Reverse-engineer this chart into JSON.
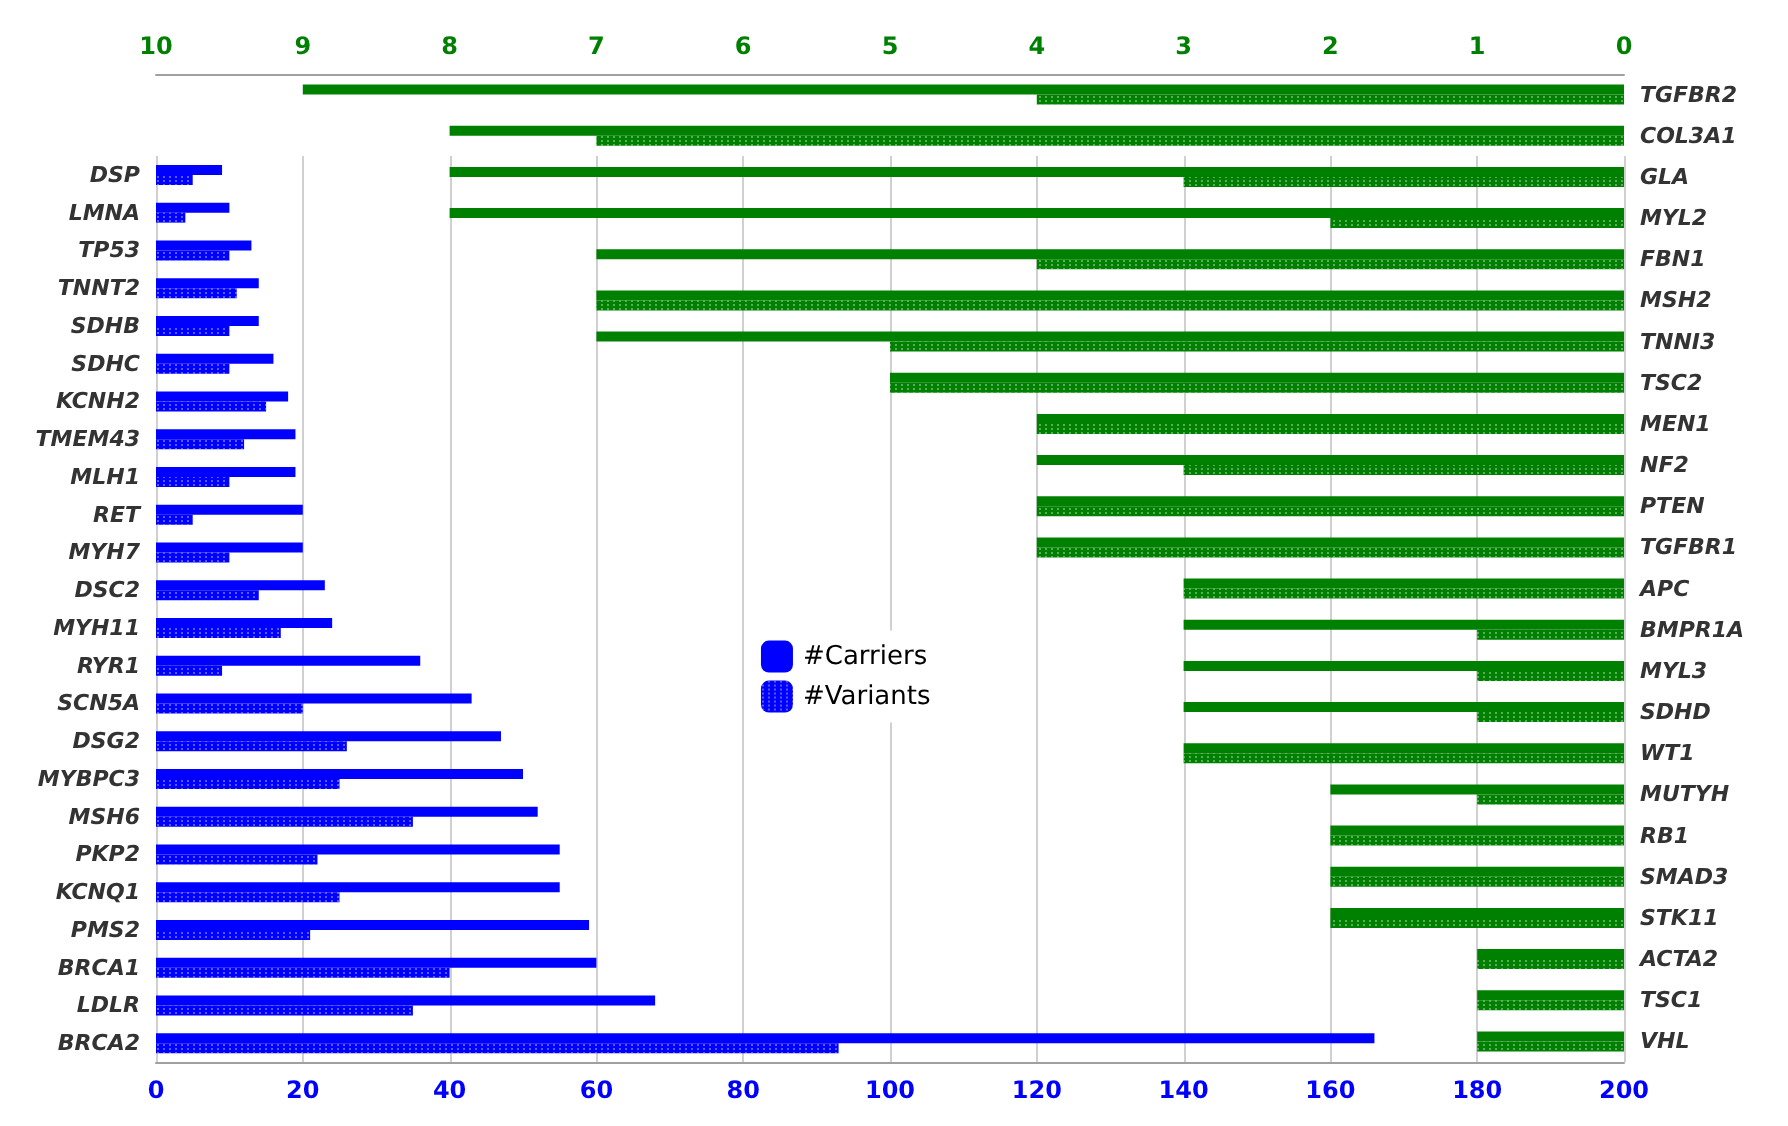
{
  "chart_data": [
    {
      "type": "bar",
      "orientation": "horizontal",
      "categories": [
        "DSP",
        "LMNA",
        "TP53",
        "TNNT2",
        "SDHB",
        "SDHC",
        "KCNH2",
        "TMEM43",
        "MLH1",
        "RET",
        "MYH7",
        "DSC2",
        "MYH11",
        "RYR1",
        "SCN5A",
        "DSG2",
        "MYBPC3",
        "MSH6",
        "PKP2",
        "KCNQ1",
        "PMS2",
        "BRCA1",
        "LDLR",
        "BRCA2"
      ],
      "series": [
        {
          "name": "#Carriers",
          "color": "#0000ff",
          "values": [
            9,
            10,
            13,
            14,
            14,
            16,
            18,
            19,
            19,
            20,
            20,
            23,
            24,
            36,
            43,
            47,
            50,
            52,
            55,
            55,
            59,
            60,
            68,
            166
          ]
        },
        {
          "name": "#Variants",
          "color": "#0000ff",
          "values": [
            5,
            4,
            10,
            11,
            10,
            10,
            15,
            12,
            10,
            5,
            10,
            14,
            17,
            9,
            20,
            26,
            25,
            35,
            22,
            25,
            21,
            40,
            35,
            93
          ]
        }
      ],
      "xlim": [
        0,
        200
      ],
      "xticks": [
        0,
        20,
        40,
        60,
        80,
        100,
        120,
        140,
        160,
        180,
        200
      ],
      "grid": "x",
      "legend": "center"
    },
    {
      "type": "bar",
      "orientation": "horizontal",
      "categories": [
        "TGFBR2",
        "COL3A1",
        "GLA",
        "MYL2",
        "FBN1",
        "MSH2",
        "TNNI3",
        "TSC2",
        "MEN1",
        "NF2",
        "PTEN",
        "TGFBR1",
        "APC",
        "BMPR1A",
        "MYL3",
        "SDHD",
        "WT1",
        "MUTYH",
        "RB1",
        "SMAD3",
        "STK11",
        "ACTA2",
        "TSC1",
        "VHL"
      ],
      "series": [
        {
          "color": "#008000",
          "axis": "x2",
          "values": [
            9,
            8,
            8,
            8,
            7,
            7,
            7,
            5,
            4,
            4,
            4,
            4,
            3,
            3,
            3,
            3,
            3,
            2,
            2,
            2,
            2,
            1,
            1,
            1
          ]
        },
        {
          "color": "#008000",
          "axis": "x2",
          "values": [
            4,
            7,
            3,
            2,
            4,
            7,
            5,
            5,
            4,
            3,
            4,
            4,
            3,
            1,
            1,
            1,
            3,
            1,
            2,
            2,
            2,
            1,
            1,
            1
          ]
        }
      ],
      "x2lim": [
        10,
        0
      ],
      "x2ticks": [
        10,
        9,
        8,
        7,
        6,
        5,
        4,
        3,
        2,
        1,
        0
      ],
      "grid": false,
      "legend": false
    }
  ]
}
